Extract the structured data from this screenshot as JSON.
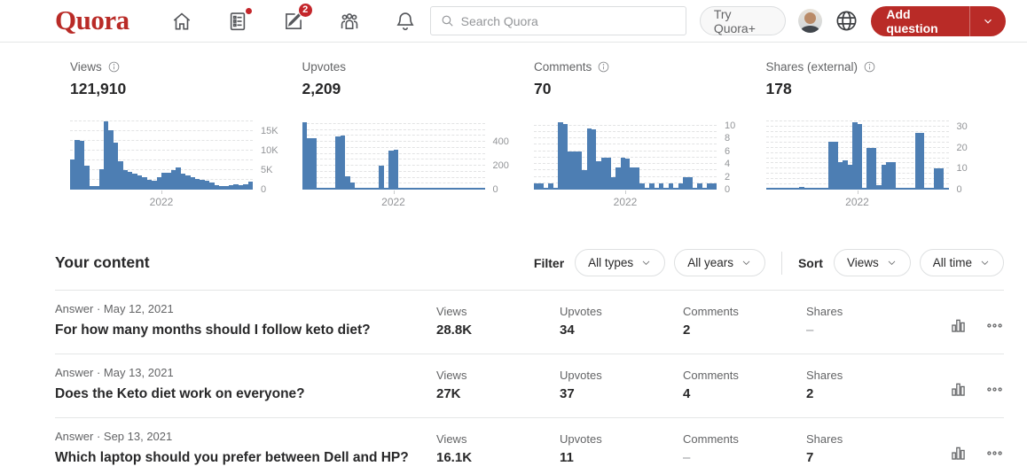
{
  "nav": {
    "logo_text": "Quora",
    "search_placeholder": "Search Quora",
    "try_quora_label": "Try Quora+",
    "add_question_label": "Add question",
    "write_badge_count": "2"
  },
  "stats": [
    {
      "label": "Views",
      "value": "121,910",
      "has_info": true
    },
    {
      "label": "Upvotes",
      "value": "2,209",
      "has_info": false
    },
    {
      "label": "Comments",
      "value": "70",
      "has_info": true
    },
    {
      "label": "Shares (external)",
      "value": "178",
      "has_info": true
    }
  ],
  "chart_data": [
    {
      "type": "bar",
      "metric": "Views",
      "xlabel": "2022",
      "ylim": [
        0,
        17800
      ],
      "grid": "dashed",
      "grid_step": 2500,
      "legend": "none",
      "y_ticks": [
        {
          "label": "15K",
          "value": 15000
        },
        {
          "label": "10K",
          "value": 10000
        },
        {
          "label": "5K",
          "value": 5000
        },
        {
          "label": "0",
          "value": 0
        }
      ],
      "values": [
        7800,
        12800,
        12600,
        6200,
        1000,
        900,
        5200,
        17500,
        15300,
        12200,
        7400,
        5000,
        4600,
        4100,
        3600,
        3100,
        2600,
        2300,
        3300,
        4400,
        4300,
        5000,
        5600,
        4200,
        3700,
        3100,
        2800,
        2500,
        2200,
        1900,
        1100,
        1000,
        950,
        1100,
        1400,
        1100,
        1300,
        2100
      ]
    },
    {
      "type": "bar",
      "metric": "Upvotes",
      "xlabel": "2022",
      "ylim": [
        0,
        580
      ],
      "grid": "dashed",
      "grid_step": 50,
      "legend": "none",
      "y_ticks": [
        {
          "label": "400",
          "value": 400
        },
        {
          "label": "200",
          "value": 200
        },
        {
          "label": "0",
          "value": 0
        }
      ],
      "values": [
        565,
        430,
        432,
        8,
        4,
        4,
        4,
        448,
        452,
        110,
        62,
        8,
        4,
        4,
        4,
        4,
        198,
        6,
        328,
        332,
        4,
        4,
        4,
        4,
        4,
        4,
        4,
        4,
        4,
        4,
        4,
        4,
        4,
        4,
        4,
        4,
        18,
        6
      ]
    },
    {
      "type": "bar",
      "metric": "Comments",
      "xlabel": "2022",
      "ylim": [
        0,
        10.8
      ],
      "grid": "dashed",
      "grid_step": 1,
      "legend": "none",
      "y_ticks": [
        {
          "label": "10",
          "value": 10
        },
        {
          "label": "8",
          "value": 8
        },
        {
          "label": "6",
          "value": 6
        },
        {
          "label": "4",
          "value": 4
        },
        {
          "label": "2",
          "value": 2
        },
        {
          "label": "0",
          "value": 0
        }
      ],
      "values": [
        1,
        1,
        0,
        1,
        0,
        10.5,
        10.3,
        6,
        6,
        6,
        3,
        9.5,
        9.4,
        4.5,
        5,
        5,
        2,
        3.5,
        5,
        4.9,
        3.5,
        3.4,
        1,
        0,
        1,
        0,
        1,
        0,
        1,
        0,
        1,
        2,
        2,
        0,
        1,
        0,
        1,
        1
      ]
    },
    {
      "type": "bar",
      "metric": "Shares",
      "xlabel": "2022",
      "ylim": [
        0,
        33
      ],
      "grid": "dashed",
      "grid_step": 2.5,
      "legend": "none",
      "y_ticks": [
        {
          "label": "30",
          "value": 30
        },
        {
          "label": "20",
          "value": 20
        },
        {
          "label": "10",
          "value": 10
        },
        {
          "label": "0",
          "value": 0
        }
      ],
      "values": [
        0.3,
        0.3,
        0.3,
        0.3,
        0.3,
        0.3,
        0.3,
        1.2,
        0.3,
        0.3,
        0.3,
        0.3,
        0.3,
        23,
        23,
        13,
        14,
        12,
        32,
        31.5,
        1,
        20,
        20,
        2,
        12,
        13,
        13,
        0.3,
        1,
        1,
        0.3,
        27,
        27,
        0.3,
        0.3,
        10,
        10,
        0.3
      ]
    }
  ],
  "content_section": {
    "title": "Your content",
    "filter_label": "Filter",
    "sort_label": "Sort",
    "filter_options": [
      "All types",
      "All years"
    ],
    "sort_options": [
      "Views",
      "All time"
    ],
    "column_labels": [
      "Views",
      "Upvotes",
      "Comments",
      "Shares"
    ],
    "rows": [
      {
        "meta": "Answer · May 12, 2021",
        "title": "For how many months should I follow keto diet?",
        "stats": [
          "28.8K",
          "34",
          "2",
          "–"
        ]
      },
      {
        "meta": "Answer · May 13, 2021",
        "title": "Does the Keto diet work on everyone?",
        "stats": [
          "27K",
          "37",
          "4",
          "2"
        ]
      },
      {
        "meta": "Answer · Sep 13, 2021",
        "title": "Which laptop should you prefer between Dell and HP?",
        "stats": [
          "16.1K",
          "11",
          "–",
          "7"
        ]
      }
    ]
  },
  "colors": {
    "brand_red": "#b92b27",
    "bar_blue": "#4d7eb3",
    "text_dark": "#282829",
    "text_gray": "#636466",
    "axis_gray": "#939598",
    "border": "#dee0e1",
    "grid_line": "#e2e3e4"
  }
}
